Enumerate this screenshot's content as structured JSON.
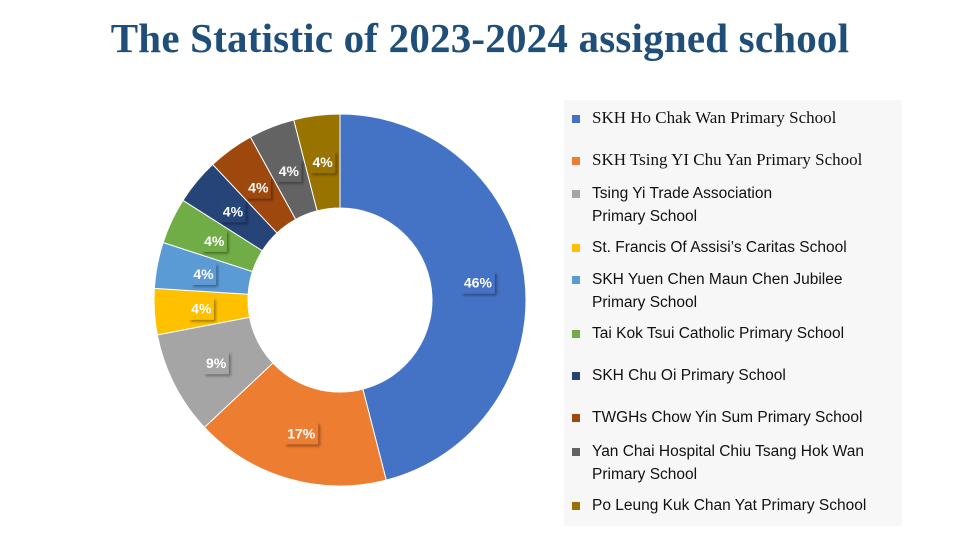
{
  "title": "The Statistic of 2023-2024 assigned school",
  "chart_data": {
    "type": "pie",
    "donut": true,
    "title": "The Statistic of 2023-2024 assigned school",
    "legend_position": "right",
    "categories": [
      "SKH Ho Chak Wan Primary School",
      "SKH Tsing YI Chu Yan Primary School",
      "Tsing Yi Trade Association Primary School",
      "St. Francis Of Assisi’s Caritas School",
      "SKH Yuen Chen Maun Chen Jubilee Primary School",
      "Tai Kok Tsui Catholic Primary School",
      "SKH Chu Oi Primary School",
      "TWGHs Chow Yin Sum Primary School",
      "Yan Chai Hospital Chiu Tsang Hok Wan Primary School",
      "Po Leung Kuk Chan Yat Primary School"
    ],
    "values": [
      46,
      17,
      9,
      4,
      4,
      4,
      4,
      4,
      4,
      4
    ],
    "value_labels": [
      "46%",
      "17%",
      "9%",
      "4%",
      "4%",
      "4%",
      "4%",
      "4%",
      "4%",
      "4%"
    ],
    "colors": [
      "#4472c4",
      "#ed7d31",
      "#a5a5a5",
      "#ffc000",
      "#5b9bd5",
      "#70ad47",
      "#264478",
      "#9e480e",
      "#636363",
      "#997300"
    ]
  },
  "legend": [
    {
      "lines": [
        "SKH Ho Chak Wan Primary School"
      ],
      "serif": true
    },
    {
      "lines": [
        "SKH Tsing YI Chu Yan Primary School"
      ],
      "serif": true
    },
    {
      "lines": [
        "Tsing Yi Trade Association",
        "Primary School"
      ],
      "serif": false
    },
    {
      "lines": [
        "St. Francis Of Assisi’s Caritas School"
      ],
      "serif": false
    },
    {
      "lines": [
        "SKH Yuen Chen Maun Chen Jubilee",
        "Primary School"
      ],
      "serif": false
    },
    {
      "lines": [
        "Tai Kok Tsui Catholic Primary School"
      ],
      "serif": false
    },
    {
      "lines": [
        "SKH Chu Oi Primary School"
      ],
      "serif": false
    },
    {
      "lines": [
        "TWGHs Chow Yin Sum Primary School"
      ],
      "serif": false
    },
    {
      "lines": [
        "Yan Chai Hospital Chiu Tsang Hok Wan",
        "Primary School"
      ],
      "serif": false
    },
    {
      "lines": [
        "Po Leung Kuk Chan Yat Primary School"
      ],
      "serif": false
    }
  ]
}
